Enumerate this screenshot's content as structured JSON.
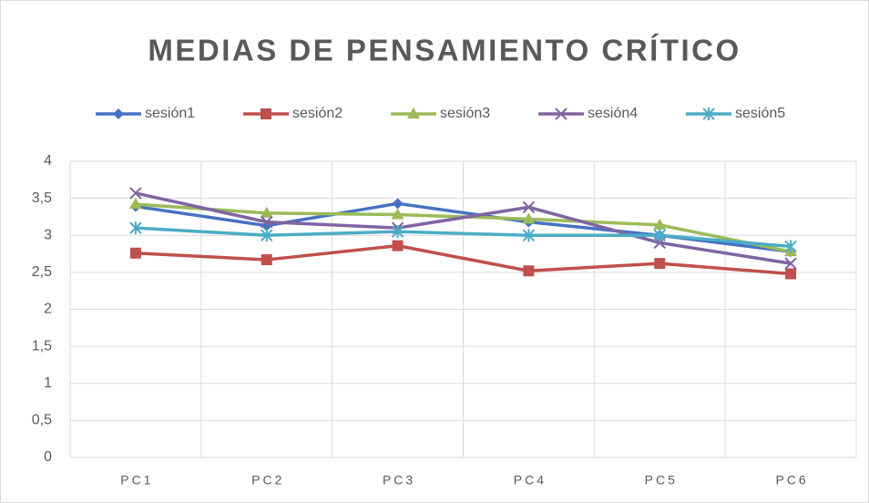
{
  "chart_data": {
    "type": "line",
    "title": "MEDIAS DE PENSAMIENTO CRÍTICO",
    "categories": [
      "PC1",
      "PC2",
      "PC3",
      "PC4",
      "PC5",
      "PC6"
    ],
    "series": [
      {
        "name": "sesión1",
        "color": "#4472c4",
        "marker": "diamond",
        "values": [
          3.39,
          3.13,
          3.43,
          3.18,
          3.0,
          2.78
        ]
      },
      {
        "name": "sesión2",
        "color": "#c0504d",
        "marker": "square",
        "values": [
          2.76,
          2.67,
          2.86,
          2.52,
          2.62,
          2.48
        ]
      },
      {
        "name": "sesión3",
        "color": "#9bbb59",
        "marker": "triangle",
        "values": [
          3.42,
          3.3,
          3.28,
          3.22,
          3.14,
          2.78
        ]
      },
      {
        "name": "sesión4",
        "color": "#8064a2",
        "marker": "x",
        "values": [
          3.57,
          3.18,
          3.1,
          3.38,
          2.9,
          2.62
        ]
      },
      {
        "name": "sesión5",
        "color": "#4bacc6",
        "marker": "star",
        "values": [
          3.1,
          3.0,
          3.05,
          3.0,
          3.0,
          2.85
        ]
      }
    ],
    "ylim": [
      0,
      4
    ],
    "yticks": [
      0,
      {
        "value": 0.5,
        "label": "0,5"
      },
      1,
      {
        "value": 1.5,
        "label": "1,5"
      },
      2,
      {
        "value": 2.5,
        "label": "2,5"
      },
      3,
      {
        "value": 3.5,
        "label": "3,5"
      },
      4
    ],
    "grid": true,
    "legend": "top"
  }
}
